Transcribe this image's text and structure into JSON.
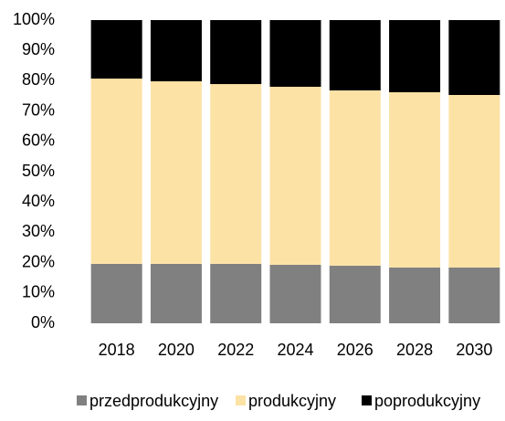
{
  "chart_data": {
    "type": "stacked_bar_percent",
    "categories": [
      "2018",
      "2020",
      "2022",
      "2024",
      "2026",
      "2028",
      "2030"
    ],
    "series": [
      {
        "name": "przedprodukcyjny",
        "color": "#808080",
        "values": [
          19.6,
          19.6,
          19.6,
          19.3,
          19.0,
          18.4,
          18.4
        ]
      },
      {
        "name": "produkcyjny",
        "color": "#fde2a6",
        "values": [
          61.1,
          60.2,
          59.3,
          58.7,
          57.8,
          57.8,
          56.9
        ]
      },
      {
        "name": "poprodukcyjny",
        "color": "#000000",
        "values": [
          19.3,
          20.2,
          21.1,
          22.0,
          23.2,
          23.8,
          24.7
        ]
      }
    ],
    "ylim": [
      0,
      100
    ],
    "yticks": [
      {
        "value": 0,
        "label": "0%"
      },
      {
        "value": 10,
        "label": "10%"
      },
      {
        "value": 20,
        "label": "20%"
      },
      {
        "value": 30,
        "label": "30%"
      },
      {
        "value": 40,
        "label": "40%"
      },
      {
        "value": 50,
        "label": "50%"
      },
      {
        "value": 60,
        "label": "60%"
      },
      {
        "value": 70,
        "label": "70%"
      },
      {
        "value": 80,
        "label": "80%"
      },
      {
        "value": 90,
        "label": "90%"
      },
      {
        "value": 100,
        "label": "100%"
      }
    ],
    "grid": false,
    "legend": "bottom"
  }
}
